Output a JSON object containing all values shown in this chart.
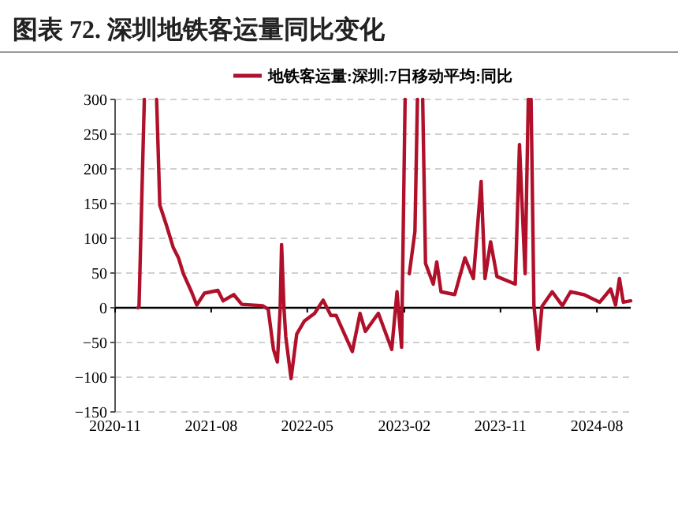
{
  "chart_data": {
    "type": "line",
    "title": "图表 72. 深圳地铁客运量同比变化",
    "x": [
      "2021-01-05",
      "2021-01-08",
      "2021-01-23",
      null,
      "2021-02-27",
      "2021-03-08",
      "2021-03-28",
      "2021-04-15",
      "2021-04-30",
      "2021-05-14",
      "2021-06-06",
      "2021-06-21",
      "2021-07-13",
      "2021-08-20",
      "2021-09-04",
      "2021-10-04",
      "2021-10-27",
      "2021-12-25",
      "2022-01-10",
      "2022-01-25",
      "2022-02-05",
      "2022-02-13",
      "2022-02-17",
      "2022-02-24",
      "2022-03-01",
      "2022-03-16",
      "2022-04-01",
      "2022-04-23",
      "2022-05-22",
      "2022-06-15",
      "2022-07-07",
      "2022-07-22",
      "2022-09-06",
      "2022-09-28",
      "2022-10-13",
      "2022-11-19",
      "2022-12-27",
      "2023-01-11",
      "2023-01-24",
      "2023-02-03",
      null,
      "2023-02-15",
      "2023-03-03",
      "2023-03-10",
      null,
      "2023-03-25",
      "2023-04-02",
      "2023-04-24",
      "2023-05-04",
      "2023-05-16",
      "2023-06-24",
      "2023-07-23",
      "2023-08-16",
      "2023-09-07",
      "2023-09-18",
      "2023-10-04",
      "2023-10-22",
      "2023-12-13",
      "2023-12-25",
      "2024-01-10",
      "2024-01-19",
      null,
      "2024-01-27",
      "2024-02-04",
      "2024-02-16",
      "2024-02-27",
      "2024-03-27",
      "2024-04-25",
      "2024-05-18",
      "2024-06-25",
      "2024-08-09",
      "2024-09-09",
      "2024-09-23",
      "2024-10-04",
      "2024-10-15",
      "2024-11-05"
    ],
    "series": [
      {
        "name": "地铁客运量:深圳:7日移动平均:同比",
        "color": "#b0102a",
        "values": [
          0,
          2,
          300,
          null,
          300,
          148,
          117,
          87,
          72,
          49,
          23,
          4,
          21,
          25,
          10,
          19,
          5,
          3,
          -2,
          -60,
          -78,
          -2,
          91,
          -2,
          -42,
          -102,
          -38,
          -19,
          -8,
          11,
          -11,
          -11,
          -63,
          -8,
          -34,
          -8,
          -60,
          23,
          -57,
          300,
          null,
          49,
          110,
          300,
          null,
          300,
          64,
          34,
          66,
          23,
          19,
          72,
          42,
          182,
          42,
          95,
          45,
          34,
          235,
          49,
          300,
          null,
          300,
          4,
          -60,
          2,
          23,
          3,
          23,
          19,
          8,
          27,
          4,
          42,
          8,
          10
        ]
      }
    ],
    "xlim": [
      "2020-11",
      "2024-11-05"
    ],
    "xticks": [
      "2020-11",
      "2021-08",
      "2022-05",
      "2023-02",
      "2023-11",
      "2024-08"
    ],
    "ylim": [
      -150,
      300
    ],
    "yticks": [
      -150,
      -100,
      -50,
      0,
      50,
      100,
      150,
      200,
      250,
      300
    ],
    "grid": "y",
    "legend": "top",
    "line_style": "solid",
    "marker": "none"
  }
}
